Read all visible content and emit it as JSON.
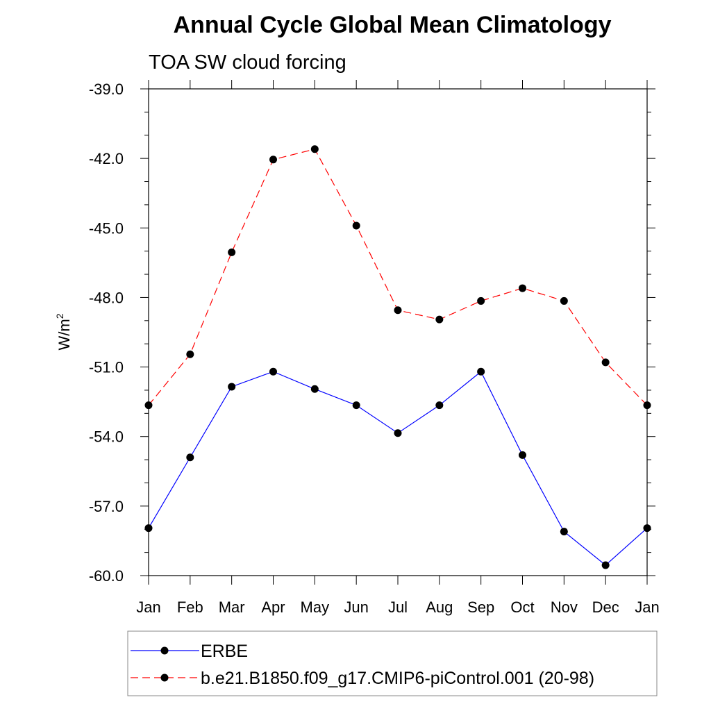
{
  "chart_data": {
    "type": "line",
    "title": "Annual Cycle Global Mean Climatology",
    "subtitle": "TOA SW cloud forcing",
    "ylabel": "W/m",
    "ylabel_sup": "2",
    "categories": [
      "Jan",
      "Feb",
      "Mar",
      "Apr",
      "May",
      "Jun",
      "Jul",
      "Aug",
      "Sep",
      "Oct",
      "Nov",
      "Dec",
      "Jan"
    ],
    "ylim": [
      -60.0,
      -39.0
    ],
    "yticks": [
      -39.0,
      -42.0,
      -45.0,
      -48.0,
      -51.0,
      -54.0,
      -57.0,
      -60.0
    ],
    "ytick_labels": [
      "-39.0",
      "-42.0",
      "-45.0",
      "-48.0",
      "-51.0",
      "-54.0",
      "-57.0",
      "-60.0"
    ],
    "grid": false,
    "legend_position": "bottom",
    "series": [
      {
        "name": "ERBE",
        "color": "#0000ff",
        "dashed": false,
        "values": [
          -57.95,
          -54.9,
          -51.85,
          -51.2,
          -51.95,
          -52.65,
          -53.85,
          -52.65,
          -51.2,
          -54.8,
          -58.1,
          -59.55,
          -57.95
        ]
      },
      {
        "name": "b.e21.B1850.f09_g17.CMIP6-piControl.001 (20-98)",
        "color": "#ff0000",
        "dashed": true,
        "values": [
          -52.65,
          -50.45,
          -46.05,
          -42.05,
          -41.6,
          -44.9,
          -48.55,
          -48.95,
          -48.15,
          -47.6,
          -48.15,
          -50.8,
          -52.65
        ]
      }
    ]
  }
}
